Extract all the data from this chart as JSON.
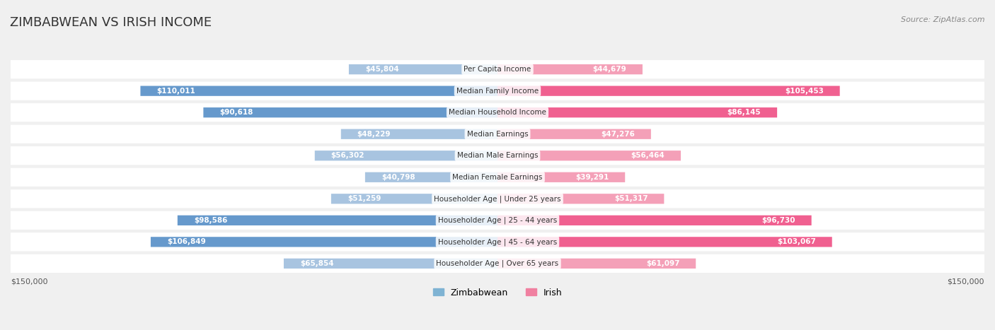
{
  "title": "ZIMBABWEAN VS IRISH INCOME",
  "source": "Source: ZipAtlas.com",
  "categories": [
    "Per Capita Income",
    "Median Family Income",
    "Median Household Income",
    "Median Earnings",
    "Median Male Earnings",
    "Median Female Earnings",
    "Householder Age | Under 25 years",
    "Householder Age | 25 - 44 years",
    "Householder Age | 45 - 64 years",
    "Householder Age | Over 65 years"
  ],
  "zimbabwean_values": [
    45804,
    110011,
    90618,
    48229,
    56302,
    40798,
    51259,
    98586,
    106849,
    65854
  ],
  "irish_values": [
    44679,
    105453,
    86145,
    47276,
    56464,
    39291,
    51317,
    96730,
    103067,
    61097
  ],
  "zimbabwean_labels": [
    "$45,804",
    "$110,011",
    "$90,618",
    "$48,229",
    "$56,302",
    "$40,798",
    "$51,259",
    "$98,586",
    "$106,849",
    "$65,854"
  ],
  "irish_labels": [
    "$44,679",
    "$105,453",
    "$86,145",
    "$47,276",
    "$56,464",
    "$39,291",
    "$51,317",
    "$96,730",
    "$103,067",
    "$61,097"
  ],
  "max_value": 150000,
  "zimbabwean_color_light": "#a8c4e0",
  "zimbabwean_color_dark": "#6699cc",
  "irish_color_light": "#f4a0b8",
  "irish_color_dark": "#f06090",
  "bg_color": "#f0f0f0",
  "row_bg_color": "#f9f9f9",
  "legend_zim_color": "#7fb3d3",
  "legend_irish_color": "#f080a0"
}
